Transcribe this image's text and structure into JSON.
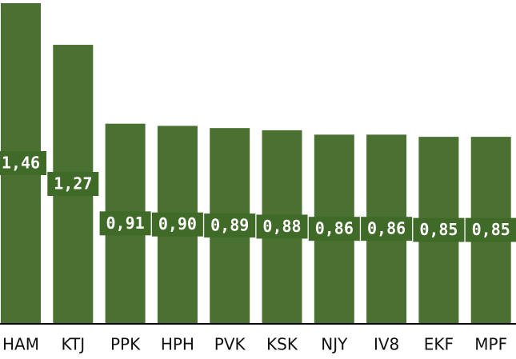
{
  "chart_data": {
    "type": "bar",
    "categories": [
      "HAM",
      "KTJ",
      "PPK",
      "HPH",
      "PVK",
      "KSK",
      "NJY",
      "IV8",
      "EKF",
      "MPF"
    ],
    "values": [
      1.46,
      1.27,
      0.91,
      0.9,
      0.89,
      0.88,
      0.86,
      0.86,
      0.85,
      0.85
    ],
    "value_labels": [
      "1,46",
      "1,27",
      "0,91",
      "0,90",
      "0,89",
      "0,88",
      "0,86",
      "0,86",
      "0,85",
      "0,85"
    ],
    "color": "#4b7132",
    "ylim": [
      0,
      1.46
    ]
  }
}
